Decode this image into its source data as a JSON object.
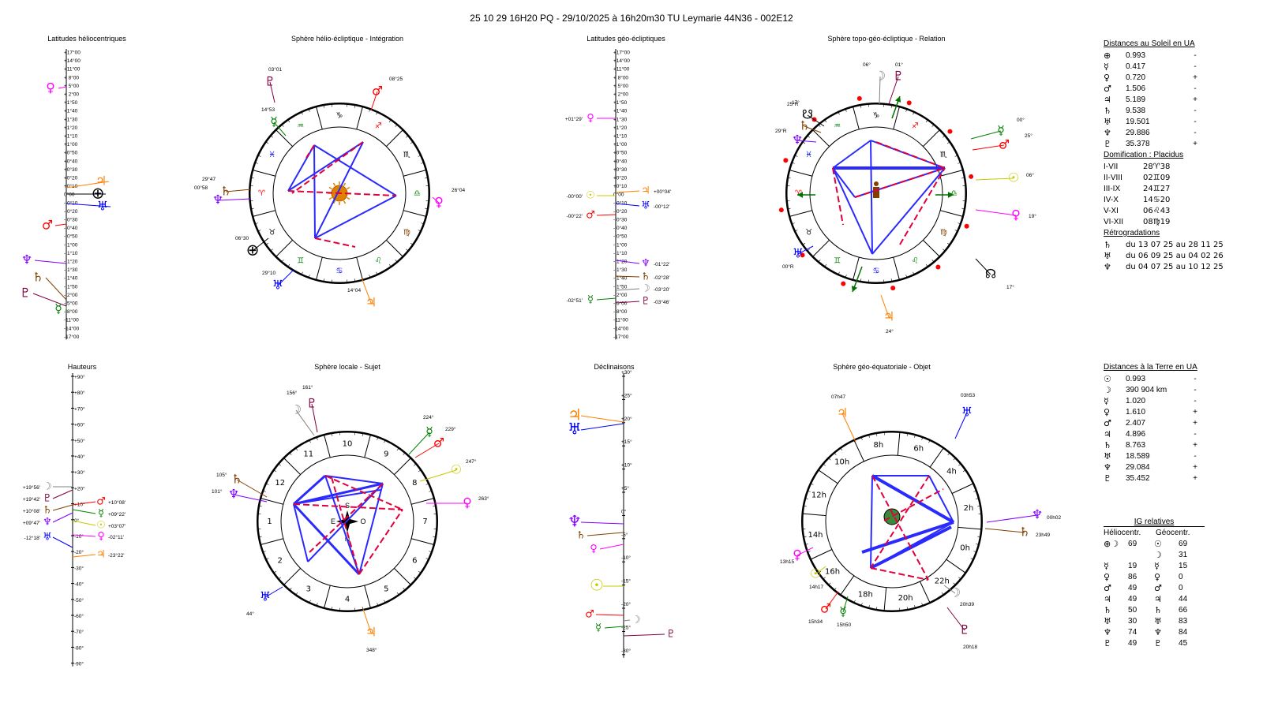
{
  "header": "25 10 29 16H20 PQ    -  29/10/2025 à 16h20m30 TU  Leymarie  44N36 - 002E12",
  "titles": {
    "helio_lat": "Latitudes héliocentriques",
    "helio_sphere": "Sphère hélio-écliptique - Intégration",
    "geo_lat": "Latitudes géo-écliptiques",
    "topo_sphere": "Sphère topo-géo-écliptique - Relation",
    "heights": "Hauteurs",
    "local_sphere": "Sphère locale - Sujet",
    "declinations": "Déclinaisons",
    "equat_sphere": "Sphère géo-équatoriale - Objet"
  },
  "colors": {
    "venus": "#ff00ff",
    "mars": "#ff0000",
    "jupiter": "#ff8000",
    "saturn": "#804000",
    "uranus": "#0000ff",
    "neptune": "#8000ff",
    "pluto": "#800040",
    "mercury": "#008000",
    "sun": "#c8c800",
    "moon": "#808080",
    "aspect_blue": "#2a2aff",
    "aspect_red": "#e0003c",
    "earth": "#000000"
  },
  "scale_lat": [
    "+17°00",
    "+14°00",
    "+11°00",
    "+ 8°00",
    "+ 5°00",
    "+ 2°00",
    "+1°50",
    "+1°40",
    "+1°30",
    "+1°20",
    "+1°10",
    "+1°00",
    "+0°50",
    "+0°40",
    "+0°30",
    "+0°20",
    "+0°10",
    "0°00",
    "- 0°10",
    "- 0°20",
    "- 0°30",
    "- 0°40",
    "- 0°50",
    "- 1°00",
    "- 1°10",
    "- 1°20",
    "- 1°30",
    "- 1°40",
    "- 1°50",
    "- 2°00",
    "- 5°00",
    "- 8°00",
    "-11°00",
    "-14°00",
    "-17°00"
  ],
  "scale_height": [
    "+90°",
    "+80°",
    "+70°",
    "+60°",
    "+50°",
    "+40°",
    "+30°",
    "+20°",
    "+10°",
    "0°",
    "-10°",
    "-20°",
    "-30°",
    "-40°",
    "-50°",
    "-60°",
    "-70°",
    "-80°",
    "-90°"
  ],
  "scale_decl": [
    "+30°",
    "+25°",
    "+20°",
    "+15°",
    "+10°",
    "+5°",
    "0°",
    "-5°",
    "-10°",
    "-15°",
    "-20°",
    "-25°",
    "-30°"
  ],
  "helio_lat_planets": [
    {
      "glyph": "♀",
      "color": "venus",
      "y_value": "+ 5°00"
    },
    {
      "glyph": "♃",
      "color": "jupiter",
      "y_value": "+0°10"
    },
    {
      "glyph": "⊕",
      "color": "earth",
      "y_value": "0°00"
    },
    {
      "glyph": "♅",
      "color": "uranus",
      "y_value": "- 0°10"
    },
    {
      "glyph": "♂",
      "color": "mars",
      "y_value": "- 0°30"
    },
    {
      "glyph": "♆",
      "color": "neptune",
      "y_value": "- 1°20"
    },
    {
      "glyph": "♄",
      "color": "saturn",
      "y_value": "- 1°40"
    },
    {
      "glyph": "♇",
      "color": "pluto",
      "y_value": "- 2°00"
    },
    {
      "glyph": "☿",
      "color": "mercury",
      "y_value": "- 5°00"
    }
  ],
  "geo_lat_planets": [
    {
      "glyph": "♀",
      "color": "venus",
      "label": "+01°29'"
    },
    {
      "glyph": "☉",
      "color": "sun",
      "label": "-00°00'"
    },
    {
      "glyph": "♃",
      "color": "jupiter",
      "label": "+00°04'"
    },
    {
      "glyph": "♅",
      "color": "uranus",
      "label": "-00°12'"
    },
    {
      "glyph": "♂",
      "color": "mars",
      "label": "-00°22'"
    },
    {
      "glyph": "♆",
      "color": "neptune",
      "label": "-01°22'"
    },
    {
      "glyph": "♄",
      "color": "saturn",
      "label": "-02°28'"
    },
    {
      "glyph": "☽",
      "color": "moon",
      "label": "-03°20'"
    },
    {
      "glyph": "☿",
      "color": "mercury",
      "label": "-02°51'"
    },
    {
      "glyph": "♇",
      "color": "pluto",
      "label": "-03°46'"
    }
  ],
  "heights_planets": [
    {
      "glyph": "☽",
      "color": "moon",
      "label": "+19°56'"
    },
    {
      "glyph": "♇",
      "color": "pluto",
      "label": "+19°42'"
    },
    {
      "glyph": "♄",
      "color": "saturn",
      "label": "+10°08'"
    },
    {
      "glyph": "♆",
      "color": "neptune",
      "label": "+09°47'"
    },
    {
      "glyph": "♅",
      "color": "uranus",
      "label": "-12°18'"
    },
    {
      "glyph": "♂",
      "color": "mars",
      "label": "+10°08'"
    },
    {
      "glyph": "☿",
      "color": "mercury",
      "label": "+09°22'"
    },
    {
      "glyph": "☉",
      "color": "sun",
      "label": "+03°07'"
    },
    {
      "glyph": "♀",
      "color": "venus",
      "label": "-02°11'"
    },
    {
      "glyph": "♃",
      "color": "jupiter",
      "label": "-23°22'"
    }
  ],
  "decl_planets": [
    {
      "glyph": "♃",
      "color": "jupiter"
    },
    {
      "glyph": "♅",
      "color": "uranus"
    },
    {
      "glyph": "♆",
      "color": "neptune"
    },
    {
      "glyph": "♄",
      "color": "saturn"
    },
    {
      "glyph": "♀",
      "color": "venus"
    },
    {
      "glyph": "☉",
      "color": "sun"
    },
    {
      "glyph": "♂",
      "color": "mars"
    },
    {
      "glyph": "☽",
      "color": "moon"
    },
    {
      "glyph": "☿",
      "color": "mercury"
    },
    {
      "glyph": "♇",
      "color": "pluto"
    }
  ],
  "helio_wheel": {
    "signs": [
      "♑",
      "♐",
      "♏",
      "♎",
      "♍",
      "♌",
      "♋",
      "♊",
      "♉",
      "♈",
      "♓",
      "♒"
    ],
    "labels": [
      {
        "glyph": "♇",
        "color": "pluto",
        "text": "03°01"
      },
      {
        "glyph": "♂",
        "color": "mars",
        "text": "08°25"
      },
      {
        "glyph": "☿",
        "color": "mercury",
        "text": "14°53"
      },
      {
        "glyph": "♄",
        "color": "saturn",
        "text": "29°47"
      },
      {
        "glyph": "♆",
        "color": "neptune",
        "text": "00°58"
      },
      {
        "glyph": "♀",
        "color": "venus",
        "text": "26°04"
      },
      {
        "glyph": "⊕",
        "color": "earth",
        "text": "06°30"
      },
      {
        "glyph": "♅",
        "color": "uranus",
        "text": "29°10"
      },
      {
        "glyph": "♃",
        "color": "jupiter",
        "text": "14°04"
      }
    ]
  },
  "topo_wheel": {
    "signs": [
      "♑",
      "♐",
      "♏",
      "♎",
      "♍",
      "♌",
      "♋",
      "♊",
      "♉",
      "♈",
      "♓",
      "♒"
    ],
    "labels": [
      {
        "glyph": "☽",
        "color": "moon",
        "text": "06°"
      },
      {
        "glyph": "♇",
        "color": "pluto",
        "text": "01°"
      },
      {
        "glyph": "☊",
        "color": "earth",
        "text": "17°"
      },
      {
        "glyph": "♄",
        "color": "saturn",
        "text": "25°R"
      },
      {
        "glyph": "♆",
        "color": "neptune",
        "text": "29°R"
      },
      {
        "glyph": "☿",
        "color": "mercury",
        "text": "00°"
      },
      {
        "glyph": "♂",
        "color": "mars",
        "text": "25°"
      },
      {
        "glyph": "☉",
        "color": "sun",
        "text": "06°"
      },
      {
        "glyph": "♀",
        "color": "venus",
        "text": "19°"
      },
      {
        "glyph": "♅",
        "color": "uranus",
        "text": "00°R"
      },
      {
        "glyph": "☋",
        "color": "earth",
        "text": "17°"
      },
      {
        "glyph": "♃",
        "color": "jupiter",
        "text": "24°"
      }
    ]
  },
  "local_wheel": {
    "houses": [
      "10",
      "9",
      "8",
      "7",
      "6",
      "5",
      "4",
      "3",
      "2",
      "1",
      "12",
      "11"
    ],
    "compass": {
      "n": "N",
      "s": "S",
      "e": "E",
      "o": "O"
    },
    "labels": [
      {
        "glyph": "☽",
        "color": "moon",
        "text": "156°"
      },
      {
        "glyph": "♇",
        "color": "pluto",
        "text": "161°"
      },
      {
        "glyph": "☿",
        "color": "mercury",
        "text": "224°"
      },
      {
        "glyph": "♂",
        "color": "mars",
        "text": "229°"
      },
      {
        "glyph": "☉",
        "color": "sun",
        "text": "247°"
      },
      {
        "glyph": "♀",
        "color": "venus",
        "text": "263°"
      },
      {
        "glyph": "♄",
        "color": "saturn",
        "text": "105°"
      },
      {
        "glyph": "♆",
        "color": "neptune",
        "text": "101°"
      },
      {
        "glyph": "♅",
        "color": "uranus",
        "text": "44°"
      },
      {
        "glyph": "♃",
        "color": "jupiter",
        "text": "348°"
      }
    ]
  },
  "equat_wheel": {
    "hours": [
      "8h",
      "6h",
      "4h",
      "2h",
      "0h",
      "22h",
      "20h",
      "18h",
      "16h",
      "14h",
      "12h",
      "10h"
    ],
    "labels": [
      {
        "glyph": "♃",
        "color": "jupiter",
        "text": "07h47"
      },
      {
        "glyph": "♅",
        "color": "uranus",
        "text": "03h53"
      },
      {
        "glyph": "♆",
        "color": "neptune",
        "text": "00h02"
      },
      {
        "glyph": "♄",
        "color": "saturn",
        "text": "23h49"
      },
      {
        "glyph": "♀",
        "color": "venus",
        "text": "13h15"
      },
      {
        "glyph": "☉",
        "color": "sun",
        "text": "14h17"
      },
      {
        "glyph": "♂",
        "color": "mars",
        "text": "15h34"
      },
      {
        "glyph": "☿",
        "color": "mercury",
        "text": "15h50"
      },
      {
        "glyph": "☽",
        "color": "moon",
        "text": "20h39"
      },
      {
        "glyph": "♇",
        "color": "pluto",
        "text": "20h18"
      }
    ]
  },
  "dist_sun": {
    "title": "Distances au Soleil en UA",
    "rows": [
      {
        "g": "⊕",
        "v": "0.993",
        "s": "-"
      },
      {
        "g": "☿",
        "v": "0.417",
        "s": "-"
      },
      {
        "g": "♀",
        "v": "0.720",
        "s": "+"
      },
      {
        "g": "♂",
        "v": "1.506",
        "s": "-"
      },
      {
        "g": "♃",
        "v": "5.189",
        "s": "+"
      },
      {
        "g": "♄",
        "v": "9.538",
        "s": "-"
      },
      {
        "g": "♅",
        "v": "19.501",
        "s": "-"
      },
      {
        "g": "♆",
        "v": "29.886",
        "s": "-"
      },
      {
        "g": "♇",
        "v": "35.378",
        "s": "+"
      }
    ]
  },
  "domification": {
    "title": "Domification : Placidus",
    "rows": [
      {
        "l": "I-VII",
        "v": "28♈38"
      },
      {
        "l": "II-VIII",
        "v": "02♊09"
      },
      {
        "l": "III-IX",
        "v": "24♊27"
      },
      {
        "l": "IV-X",
        "v": "14♋20"
      },
      {
        "l": "V-XI",
        "v": "06♌43"
      },
      {
        "l": "VI-XII",
        "v": "08♍19"
      }
    ]
  },
  "retro": {
    "title": "Rétrogradations",
    "rows": [
      {
        "g": "♄",
        "t": "du 13 07 25 au 28 11 25"
      },
      {
        "g": "♅",
        "t": "du 06 09 25 au 04 02 26"
      },
      {
        "g": "♆",
        "t": "du 04 07 25 au 10 12 25"
      }
    ]
  },
  "dist_earth": {
    "title": "Distances à la Terre en UA",
    "rows": [
      {
        "g": "☉",
        "v": "0.993",
        "s": "-"
      },
      {
        "g": "☽",
        "v": "390 904 km",
        "s": "-"
      },
      {
        "g": "☿",
        "v": "1.020",
        "s": "-"
      },
      {
        "g": "♀",
        "v": "1.610",
        "s": "+"
      },
      {
        "g": "♂",
        "v": "2.407",
        "s": "+"
      },
      {
        "g": "♃",
        "v": "4.896",
        "s": "-"
      },
      {
        "g": "♄",
        "v": "8.763",
        "s": "+"
      },
      {
        "g": "♅",
        "v": "18.589",
        "s": "-"
      },
      {
        "g": "♆",
        "v": "29.084",
        "s": "+"
      },
      {
        "g": "♇",
        "v": "35.452",
        "s": "+"
      }
    ]
  },
  "ig": {
    "title": "IG relatives",
    "col1": "Héliocentr.",
    "col2": "Géocentr.",
    "rows": [
      {
        "hg": "⊕☽",
        "hv": "69",
        "gg": "☉",
        "gv": "69"
      },
      {
        "hg": "",
        "hv": "",
        "gg": "☽",
        "gv": "31"
      },
      {
        "hg": "☿",
        "hv": "19",
        "gg": "☿",
        "gv": "15"
      },
      {
        "hg": "♀",
        "hv": "86",
        "gg": "♀",
        "gv": "0"
      },
      {
        "hg": "♂",
        "hv": "49",
        "gg": "♂",
        "gv": "0"
      },
      {
        "hg": "♃",
        "hv": "49",
        "gg": "♃",
        "gv": "44"
      },
      {
        "hg": "♄",
        "hv": "50",
        "gg": "♄",
        "gv": "66"
      },
      {
        "hg": "♅",
        "hv": "30",
        "gg": "♅",
        "gv": "83"
      },
      {
        "hg": "♆",
        "hv": "74",
        "gg": "♆",
        "gv": "84"
      },
      {
        "hg": "♇",
        "hv": "49",
        "gg": "♇",
        "gv": "45"
      }
    ]
  }
}
